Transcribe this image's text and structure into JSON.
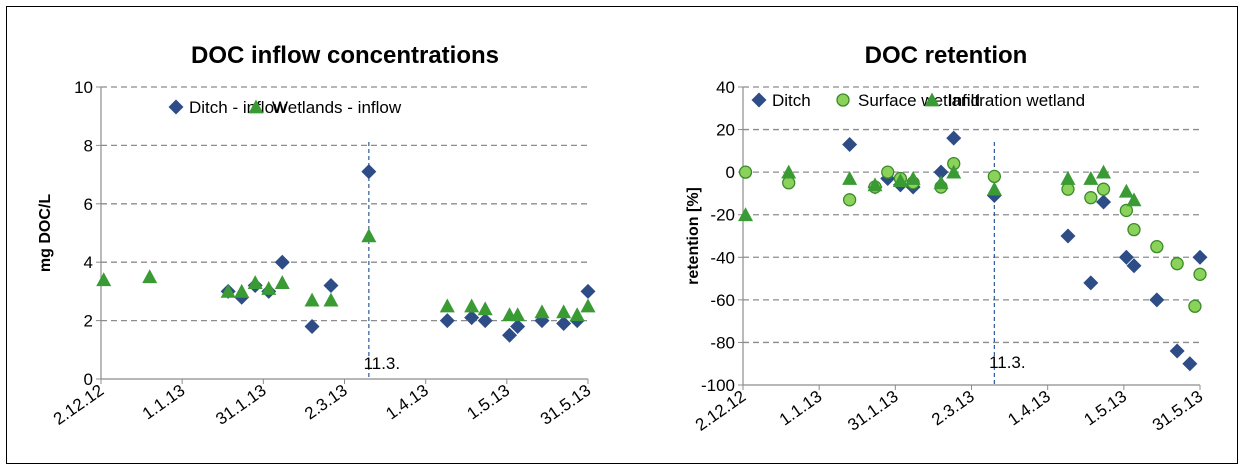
{
  "chart_data": [
    {
      "type": "scatter",
      "title": "DOC inflow concentrations",
      "ylabel": "mg DOC/L",
      "xlabel": "",
      "ylim": [
        0,
        10
      ],
      "yticks": [
        "0",
        "2",
        "4",
        "6",
        "8",
        "10"
      ],
      "xlim": [
        "2012-12-02",
        "2013-05-31"
      ],
      "xticks": [
        {
          "date": "2012-12-02",
          "label": "2.12.12"
        },
        {
          "date": "2013-01-01",
          "label": "1.1.13"
        },
        {
          "date": "2013-01-31",
          "label": "31.1.13"
        },
        {
          "date": "2013-03-02",
          "label": "2.3.13"
        },
        {
          "date": "2013-04-01",
          "label": "1.4.13"
        },
        {
          "date": "2013-05-01",
          "label": "1.5.13"
        },
        {
          "date": "2013-05-31",
          "label": "31.5.13"
        }
      ],
      "grid": "horizontal dashed",
      "legend": "top",
      "annotation": {
        "label": "11.3.",
        "date": "2013-03-11"
      },
      "series": [
        {
          "name": "Ditch - inflow",
          "marker": "diamond",
          "color": "#2E4D87",
          "points": [
            {
              "x": "2013-01-18",
              "y": 3.0
            },
            {
              "x": "2013-01-23",
              "y": 2.8
            },
            {
              "x": "2013-01-28",
              "y": 3.2
            },
            {
              "x": "2013-02-02",
              "y": 3.0
            },
            {
              "x": "2013-02-07",
              "y": 4.0
            },
            {
              "x": "2013-02-18",
              "y": 1.8
            },
            {
              "x": "2013-02-25",
              "y": 3.2
            },
            {
              "x": "2013-03-11",
              "y": 7.1
            },
            {
              "x": "2013-04-09",
              "y": 2.0
            },
            {
              "x": "2013-04-18",
              "y": 2.1
            },
            {
              "x": "2013-04-23",
              "y": 2.0
            },
            {
              "x": "2013-05-02",
              "y": 1.5
            },
            {
              "x": "2013-05-05",
              "y": 1.8
            },
            {
              "x": "2013-05-14",
              "y": 2.0
            },
            {
              "x": "2013-05-22",
              "y": 1.9
            },
            {
              "x": "2013-05-27",
              "y": 2.0
            },
            {
              "x": "2013-05-31",
              "y": 3.0
            }
          ]
        },
        {
          "name": "Wetlands - inflow",
          "marker": "triangle",
          "color": "#3A9B35",
          "points": [
            {
              "x": "2012-12-03",
              "y": 3.4
            },
            {
              "x": "2012-12-20",
              "y": 3.5
            },
            {
              "x": "2013-01-18",
              "y": 3.0
            },
            {
              "x": "2013-01-23",
              "y": 3.0
            },
            {
              "x": "2013-01-28",
              "y": 3.3
            },
            {
              "x": "2013-02-02",
              "y": 3.1
            },
            {
              "x": "2013-02-07",
              "y": 3.3
            },
            {
              "x": "2013-02-18",
              "y": 2.7
            },
            {
              "x": "2013-02-25",
              "y": 2.7
            },
            {
              "x": "2013-03-11",
              "y": 4.9
            },
            {
              "x": "2013-04-09",
              "y": 2.5
            },
            {
              "x": "2013-04-18",
              "y": 2.5
            },
            {
              "x": "2013-04-23",
              "y": 2.4
            },
            {
              "x": "2013-05-02",
              "y": 2.2
            },
            {
              "x": "2013-05-05",
              "y": 2.2
            },
            {
              "x": "2013-05-14",
              "y": 2.3
            },
            {
              "x": "2013-05-22",
              "y": 2.3
            },
            {
              "x": "2013-05-27",
              "y": 2.2
            },
            {
              "x": "2013-05-31",
              "y": 2.5
            }
          ]
        }
      ]
    },
    {
      "type": "scatter",
      "title": "DOC retention",
      "ylabel": "retention [%]",
      "xlabel": "",
      "ylim": [
        -100,
        40
      ],
      "yticks": [
        "-100",
        "-80",
        "-60",
        "-40",
        "-20",
        "0",
        "20",
        "40"
      ],
      "xlim": [
        "2012-12-02",
        "2013-05-31"
      ],
      "xticks": [
        {
          "date": "2012-12-02",
          "label": "2.12.12"
        },
        {
          "date": "2013-01-01",
          "label": "1.1.13"
        },
        {
          "date": "2013-01-31",
          "label": "31.1.13"
        },
        {
          "date": "2013-03-02",
          "label": "2.3.13"
        },
        {
          "date": "2013-04-01",
          "label": "1.4.13"
        },
        {
          "date": "2013-05-01",
          "label": "1.5.13"
        },
        {
          "date": "2013-05-31",
          "label": "31.5.13"
        }
      ],
      "grid": "horizontal dashed",
      "legend": "top",
      "annotation": {
        "label": "11.3.",
        "date": "2013-03-11"
      },
      "series": [
        {
          "name": "Ditch",
          "marker": "diamond",
          "color": "#2E4D87",
          "points": [
            {
              "x": "2013-01-13",
              "y": 13
            },
            {
              "x": "2013-01-23",
              "y": -7
            },
            {
              "x": "2013-01-28",
              "y": -3
            },
            {
              "x": "2013-02-02",
              "y": -6
            },
            {
              "x": "2013-02-07",
              "y": -7
            },
            {
              "x": "2013-02-18",
              "y": 0
            },
            {
              "x": "2013-02-23",
              "y": 16
            },
            {
              "x": "2013-03-11",
              "y": -11
            },
            {
              "x": "2013-04-09",
              "y": -30
            },
            {
              "x": "2013-04-18",
              "y": -52
            },
            {
              "x": "2013-04-23",
              "y": -14
            },
            {
              "x": "2013-05-02",
              "y": -40
            },
            {
              "x": "2013-05-05",
              "y": -44
            },
            {
              "x": "2013-05-14",
              "y": -60
            },
            {
              "x": "2013-05-22",
              "y": -84
            },
            {
              "x": "2013-05-27",
              "y": -90
            },
            {
              "x": "2013-05-31",
              "y": -40
            }
          ]
        },
        {
          "name": "Surface wetland",
          "marker": "circle",
          "color": "#8BD25A",
          "points": [
            {
              "x": "2012-12-03",
              "y": 0
            },
            {
              "x": "2012-12-20",
              "y": -5
            },
            {
              "x": "2013-01-13",
              "y": -13
            },
            {
              "x": "2013-01-23",
              "y": -7
            },
            {
              "x": "2013-01-28",
              "y": 0
            },
            {
              "x": "2013-02-02",
              "y": -3
            },
            {
              "x": "2013-02-07",
              "y": -5
            },
            {
              "x": "2013-02-18",
              "y": -7
            },
            {
              "x": "2013-02-23",
              "y": 4
            },
            {
              "x": "2013-03-11",
              "y": -2
            },
            {
              "x": "2013-04-09",
              "y": -8
            },
            {
              "x": "2013-04-18",
              "y": -12
            },
            {
              "x": "2013-04-23",
              "y": -8
            },
            {
              "x": "2013-05-02",
              "y": -18
            },
            {
              "x": "2013-05-05",
              "y": -27
            },
            {
              "x": "2013-05-14",
              "y": -35
            },
            {
              "x": "2013-05-22",
              "y": -43
            },
            {
              "x": "2013-05-29",
              "y": -63
            },
            {
              "x": "2013-05-31",
              "y": -48
            }
          ]
        },
        {
          "name": "Infiltration wetland",
          "marker": "triangle",
          "color": "#3A9B35",
          "points": [
            {
              "x": "2012-12-03",
              "y": -20
            },
            {
              "x": "2012-12-20",
              "y": 0
            },
            {
              "x": "2013-01-13",
              "y": -3
            },
            {
              "x": "2013-01-23",
              "y": -6
            },
            {
              "x": "2013-02-02",
              "y": -4
            },
            {
              "x": "2013-02-07",
              "y": -3
            },
            {
              "x": "2013-02-18",
              "y": -5
            },
            {
              "x": "2013-02-23",
              "y": 0
            },
            {
              "x": "2013-03-11",
              "y": -8
            },
            {
              "x": "2013-04-09",
              "y": -3
            },
            {
              "x": "2013-04-18",
              "y": -3
            },
            {
              "x": "2013-04-23",
              "y": 0
            },
            {
              "x": "2013-05-02",
              "y": -9
            },
            {
              "x": "2013-05-05",
              "y": -13
            }
          ]
        }
      ]
    }
  ]
}
